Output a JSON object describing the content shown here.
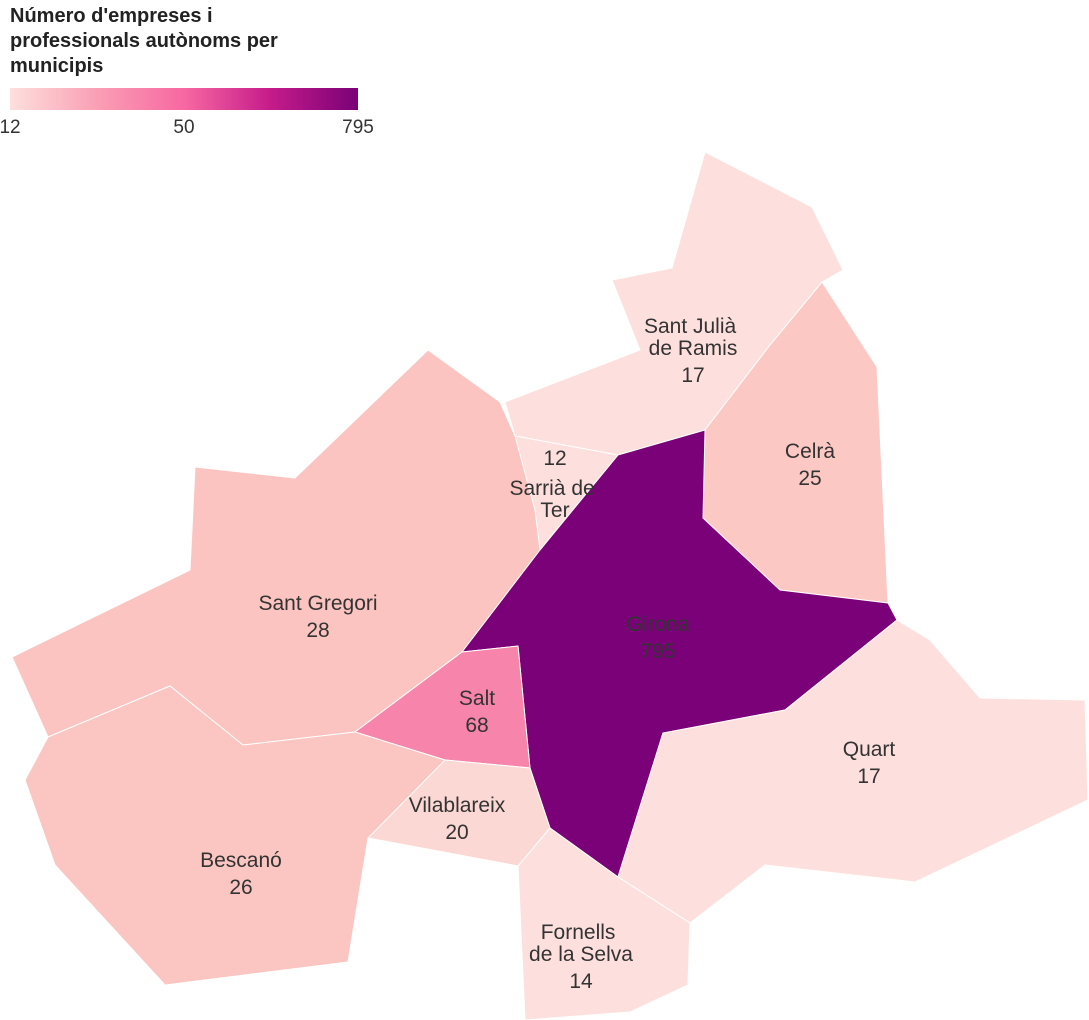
{
  "chart_data": {
    "type": "choropleth",
    "title": "Número d'empreses i professionals autònoms per municipis",
    "legend": {
      "ticks": [
        12,
        50,
        795
      ],
      "colors": [
        "#fde0dd",
        "#fa9fb5",
        "#f768a1",
        "#c51b8a",
        "#7a0177"
      ]
    },
    "regions": [
      {
        "name": "Sant Julià de Ramis",
        "value": 17,
        "color": "#fde0dd"
      },
      {
        "name": "Celrà",
        "value": 25,
        "color": "#fbc8c4"
      },
      {
        "name": "Sarrià de Ter",
        "value": 12,
        "color": "#fde0dd"
      },
      {
        "name": "Sant Gregori",
        "value": 28,
        "color": "#fbc4c0"
      },
      {
        "name": "Girona",
        "value": 795,
        "color": "#7a0177"
      },
      {
        "name": "Salt",
        "value": 68,
        "color": "#f784ab"
      },
      {
        "name": "Quart",
        "value": 17,
        "color": "#fde0dd"
      },
      {
        "name": "Vilablareix",
        "value": 20,
        "color": "#fcd8d4"
      },
      {
        "name": "Bescanó",
        "value": 26,
        "color": "#fbc6c2"
      },
      {
        "name": "Fornells de la Selva",
        "value": 14,
        "color": "#fde0dd"
      }
    ]
  }
}
